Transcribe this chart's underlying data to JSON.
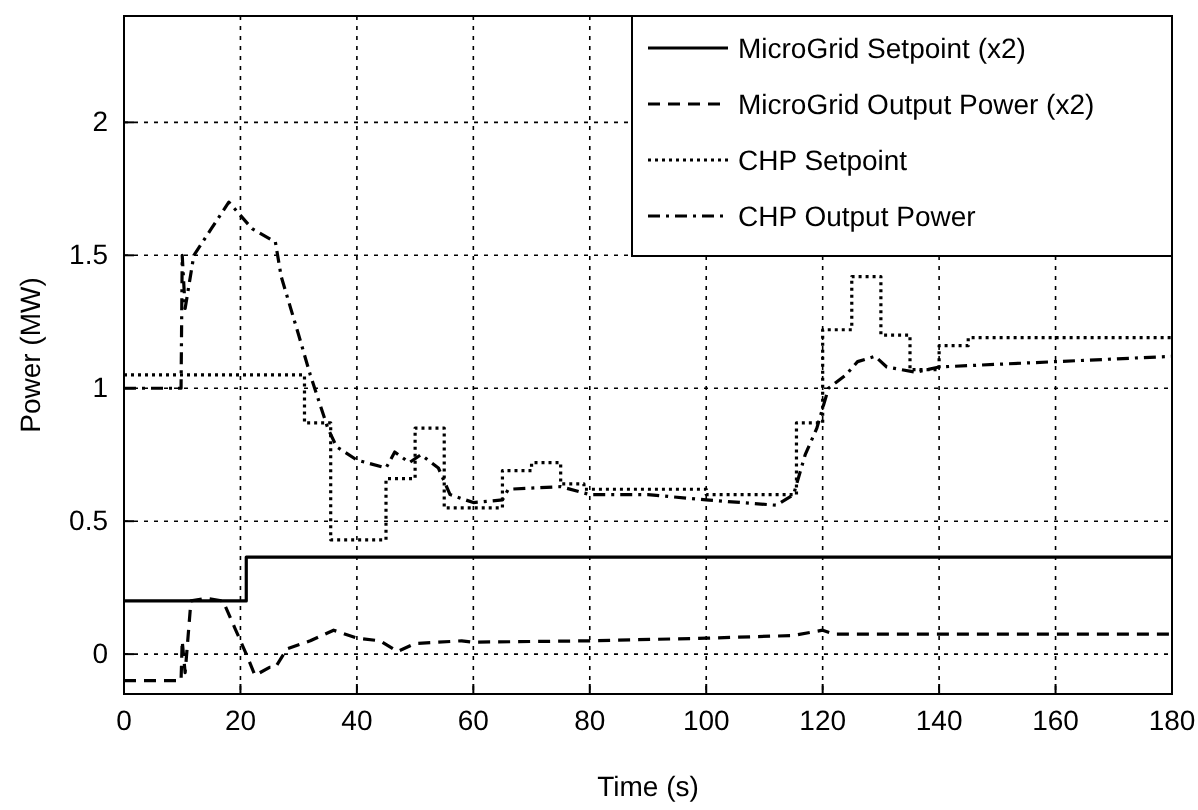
{
  "chart_data": {
    "type": "line",
    "xlabel": "Time (s)",
    "ylabel": "Power (MW)",
    "xlim": [
      0,
      180
    ],
    "ylim": [
      -0.15,
      2.4
    ],
    "xticks": [
      0,
      20,
      40,
      60,
      80,
      100,
      120,
      140,
      160,
      180
    ],
    "yticks": [
      0,
      0.5,
      1,
      1.5,
      2
    ],
    "grid": true,
    "legend": "top right",
    "series": [
      {
        "name": "MicroGrid Setpoint (x2)",
        "type": "step",
        "color": "#000000",
        "line_style": "solid",
        "x": [
          0,
          21,
          180
        ],
        "values": [
          0.2,
          0.365,
          0.365
        ]
      },
      {
        "name": "MicroGrid Output Power (x2)",
        "color": "#000000",
        "line_style": "dashed",
        "x": [
          0,
          9.8,
          10,
          10.5,
          11.5,
          14,
          17,
          19,
          21,
          22.5,
          25,
          26,
          28,
          32,
          36,
          40,
          44,
          47,
          50,
          58,
          60,
          80,
          100,
          115,
          120,
          122,
          125,
          180
        ],
        "values": [
          -0.1,
          -0.1,
          0.05,
          -0.07,
          0.2,
          0.21,
          0.2,
          0.1,
          0,
          -0.08,
          -0.05,
          -0.05,
          0.02,
          0.05,
          0.09,
          0.06,
          0.05,
          0.01,
          0.04,
          0.05,
          0.045,
          0.05,
          0.06,
          0.07,
          0.09,
          0.075,
          0.075,
          0.075
        ]
      },
      {
        "name": "CHP Setpoint",
        "type": "step",
        "color": "#000000",
        "line_style": "dotted",
        "x": [
          0,
          31,
          35.5,
          45,
          50,
          55,
          65,
          70,
          75,
          79,
          85,
          100,
          115.5,
          120,
          125,
          130,
          135,
          140,
          145,
          180
        ],
        "values": [
          1.05,
          0.87,
          0.43,
          0.66,
          0.85,
          0.55,
          0.69,
          0.72,
          0.64,
          0.62,
          0.62,
          0.6,
          0.87,
          1.22,
          1.42,
          1.2,
          1.07,
          1.16,
          1.19,
          1.19
        ]
      },
      {
        "name": "CHP Output Power",
        "color": "#000000",
        "line_style": "dashdot",
        "x": [
          0,
          9.8,
          10,
          10.5,
          12,
          15,
          18,
          20,
          22,
          26,
          27,
          30,
          32,
          35,
          36.5,
          40,
          45,
          46.5,
          49,
          51,
          54,
          56,
          60,
          65,
          66,
          75,
          80,
          90,
          100,
          112,
          115,
          117,
          119,
          121,
          124,
          126,
          129,
          131,
          136,
          140,
          160,
          180
        ],
        "values": [
          1,
          1,
          1.5,
          1.3,
          1.5,
          1.6,
          1.7,
          1.65,
          1.6,
          1.55,
          1.42,
          1.2,
          1.05,
          0.85,
          0.78,
          0.73,
          0.7,
          0.76,
          0.72,
          0.75,
          0.7,
          0.6,
          0.57,
          0.58,
          0.62,
          0.63,
          0.6,
          0.6,
          0.58,
          0.56,
          0.6,
          0.75,
          0.85,
          1,
          1.05,
          1.1,
          1.12,
          1.08,
          1.06,
          1.08,
          1.1,
          1.12
        ]
      }
    ]
  }
}
